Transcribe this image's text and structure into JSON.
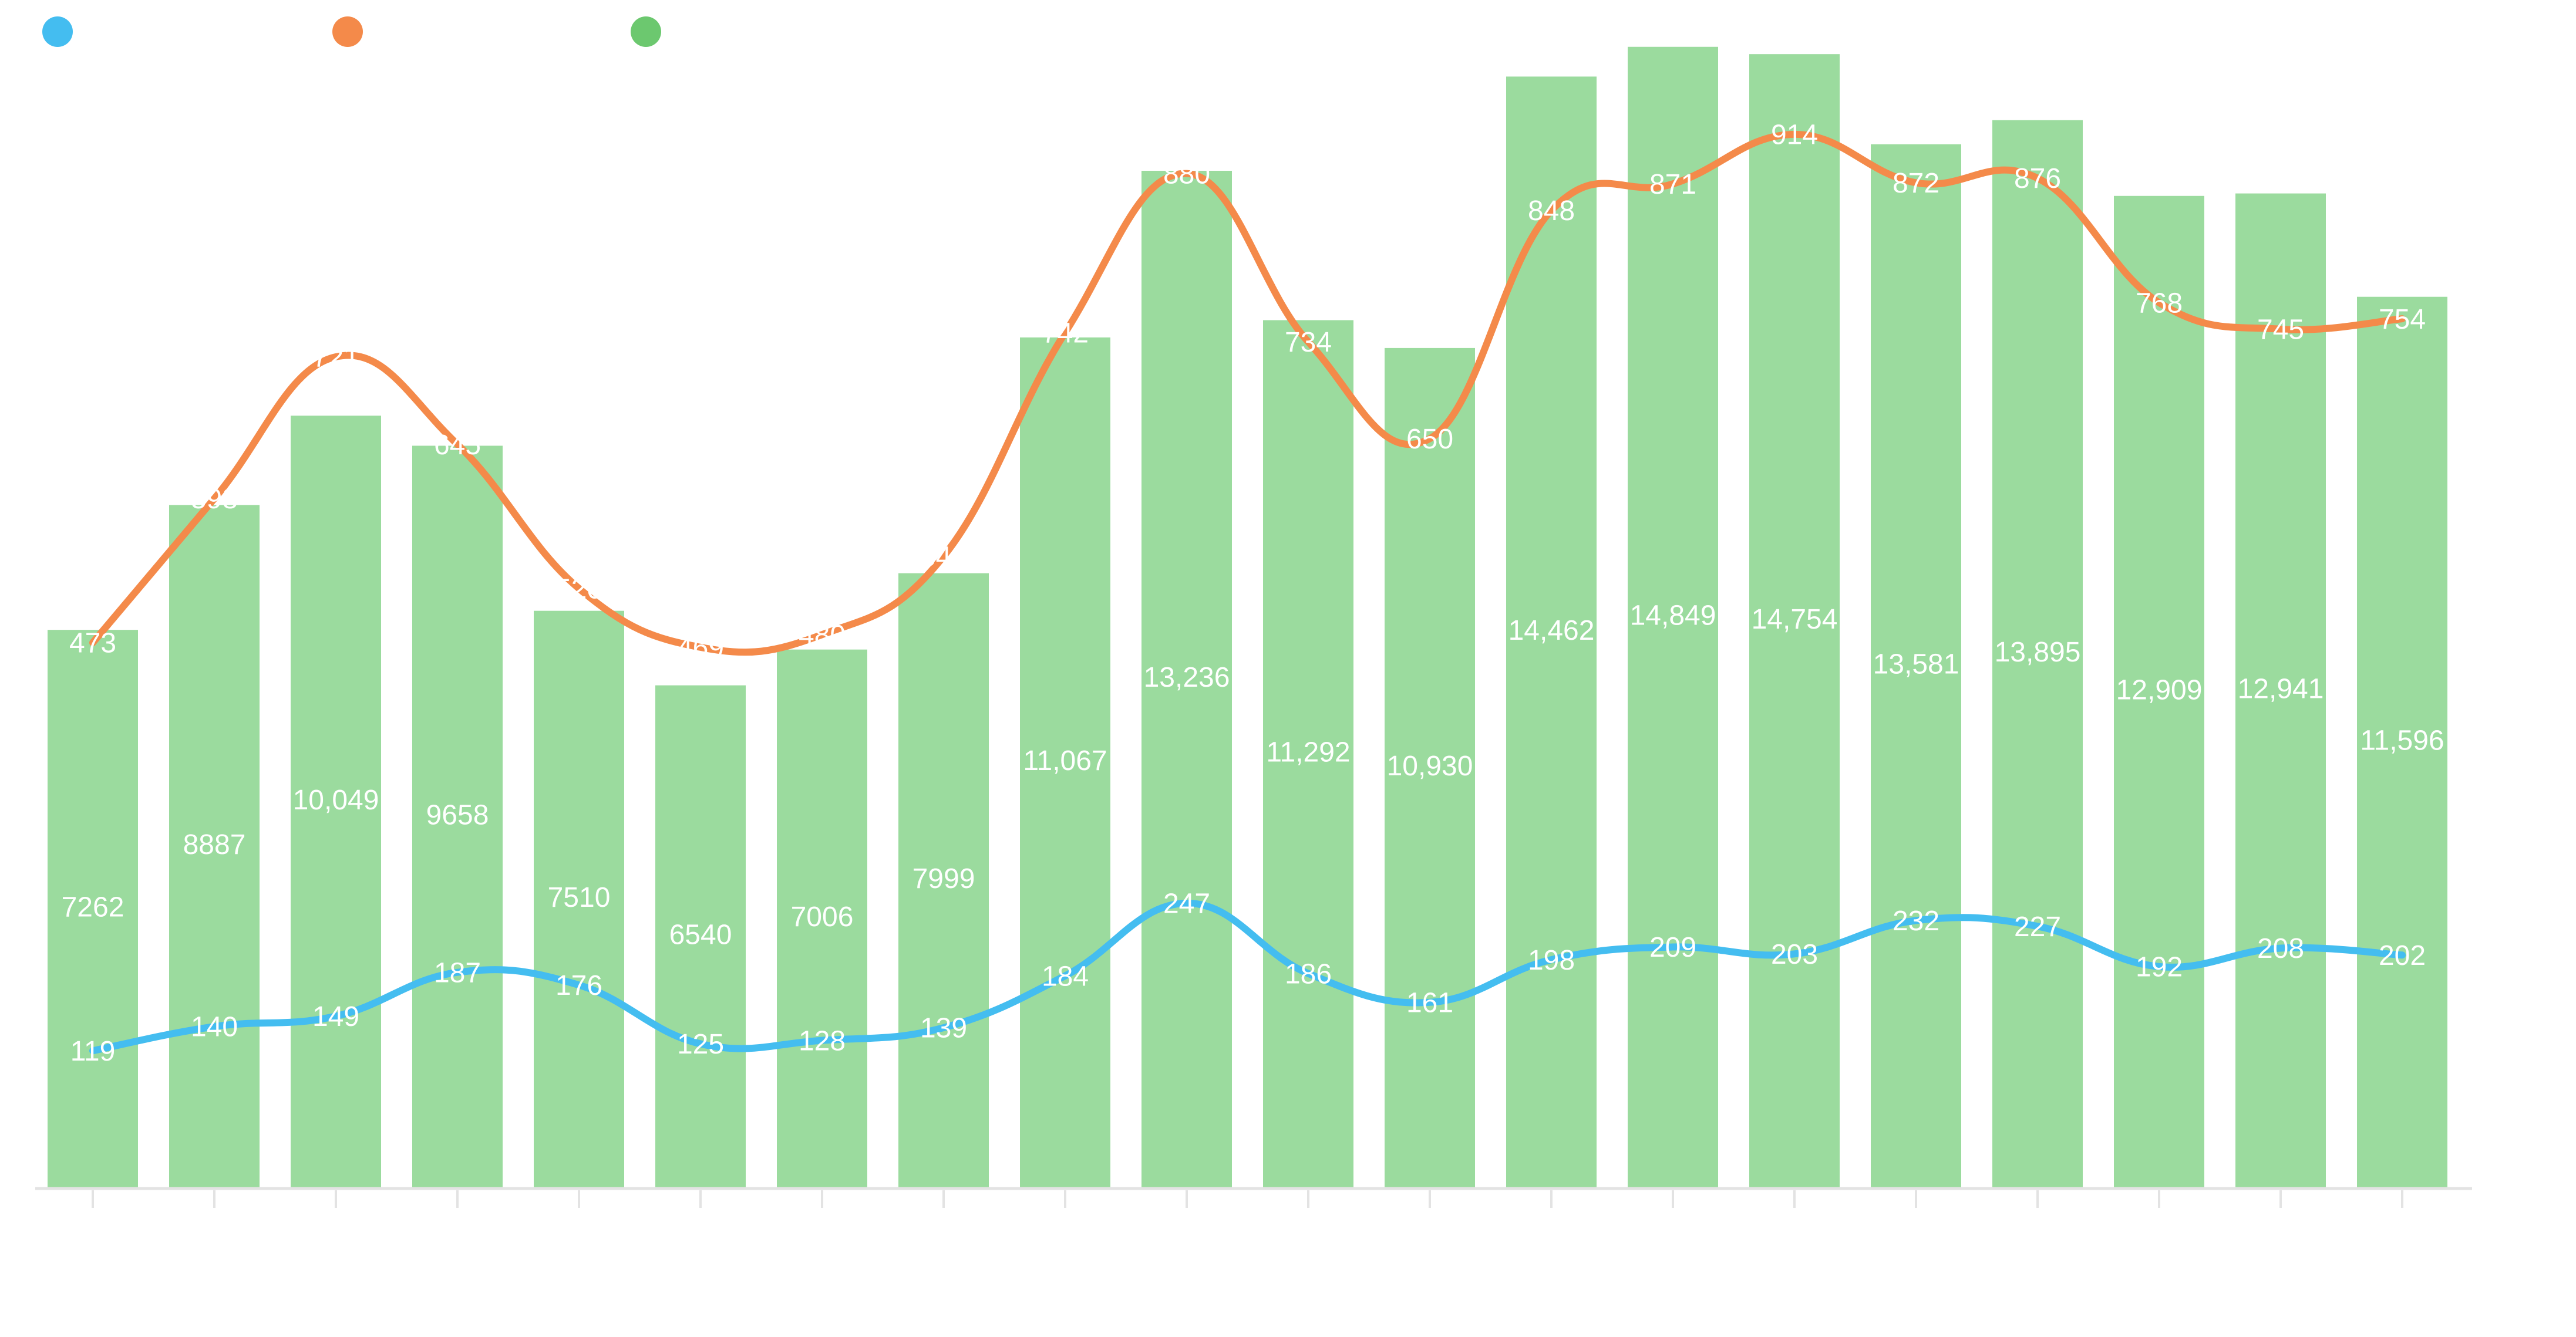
{
  "chart_data": {
    "type": "bar",
    "categories": [
      "",
      "",
      "",
      "",
      "",
      "",
      "",
      "",
      "",
      "",
      "",
      "",
      "",
      "",
      "",
      "",
      "",
      "",
      "",
      ""
    ],
    "series": [
      {
        "type": "bar",
        "color": "#9bdb9e",
        "values": [
          7262,
          8887,
          10049,
          9658,
          7510,
          6540,
          7006,
          7999,
          11067,
          13236,
          11292,
          10930,
          14462,
          14849,
          14754,
          13581,
          13895,
          12909,
          12941,
          11596
        ],
        "labels": [
          "7262",
          "8887",
          "10,049",
          "9658",
          "7510",
          "6540",
          "7006",
          "7999",
          "11,067",
          "13,236",
          "11,292",
          "10,930",
          "14,462",
          "14,849",
          "14,754",
          "13,581",
          "13,895",
          "12,909",
          "12,941",
          "11,596"
        ]
      },
      {
        "type": "line",
        "color": "#f48a4a",
        "values": [
          473,
          598,
          721,
          645,
          520,
          469,
          480,
          548,
          742,
          880,
          734,
          650,
          848,
          871,
          914,
          872,
          876,
          768,
          745,
          754
        ],
        "labels": [
          "473",
          "598",
          "721",
          "645",
          "520",
          "469",
          "480",
          "548",
          "742",
          "880",
          "734",
          "650",
          "848",
          "871",
          "914",
          "872",
          "876",
          "768",
          "745",
          "754"
        ]
      },
      {
        "type": "line",
        "color": "#44bdf0",
        "values": [
          119,
          140,
          149,
          187,
          176,
          125,
          128,
          139,
          184,
          247,
          186,
          161,
          198,
          209,
          203,
          232,
          227,
          192,
          208,
          202
        ],
        "labels": [
          "119",
          "140",
          "149",
          "187",
          "176",
          "125",
          "128",
          "139",
          "184",
          "247",
          "186",
          "161",
          "198",
          "209",
          "203",
          "232",
          "227",
          "192",
          "208",
          "202"
        ]
      }
    ],
    "legend": {
      "placement": "top-left",
      "items": [
        {
          "color": "#44bdf0",
          "label": ""
        },
        {
          "color": "#f48a4a",
          "label": ""
        },
        {
          "color": "#6cc86f",
          "label": ""
        }
      ]
    },
    "grid": false,
    "bar_ylim": [
      0,
      15000
    ],
    "line_ylim": [
      0,
      1000
    ]
  }
}
